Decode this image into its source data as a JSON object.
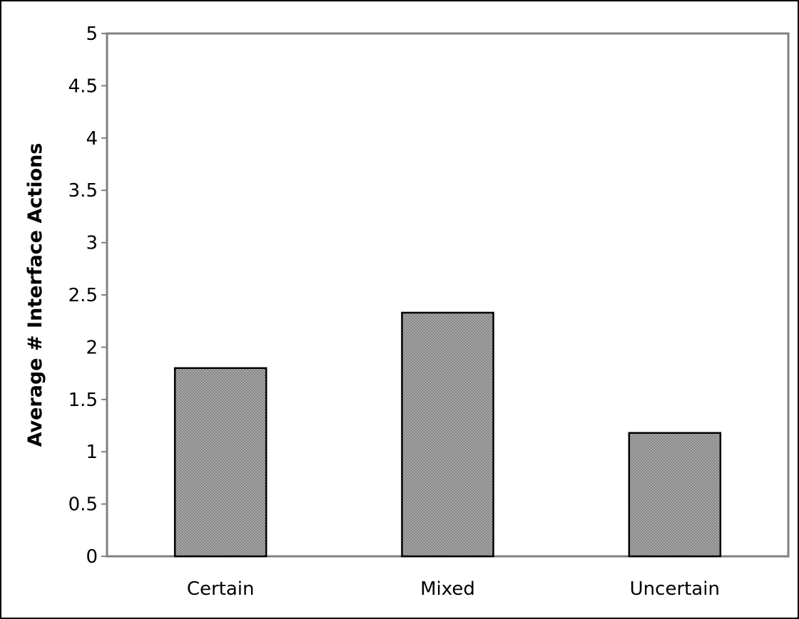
{
  "chart_data": {
    "type": "bar",
    "title": "",
    "xlabel": "",
    "ylabel": "Average # Interface Actions",
    "categories": [
      "Certain",
      "Mixed",
      "Uncertain"
    ],
    "values": [
      1.8,
      2.33,
      1.18
    ],
    "ylim": [
      0,
      5
    ],
    "yticks": [
      "0",
      "0.5",
      "1",
      "1.5",
      "2",
      "2.5",
      "3",
      "3.5",
      "4",
      "4.5",
      "5"
    ],
    "grid": false,
    "legend": "none",
    "colors": {
      "bar_fill": "#a8a8a8",
      "bar_pattern_dot": "#6e6e6e",
      "bar_stroke": "#000000",
      "plot_frame": "#808080",
      "axis_line": "#808080",
      "outer_border": "#000000"
    }
  }
}
